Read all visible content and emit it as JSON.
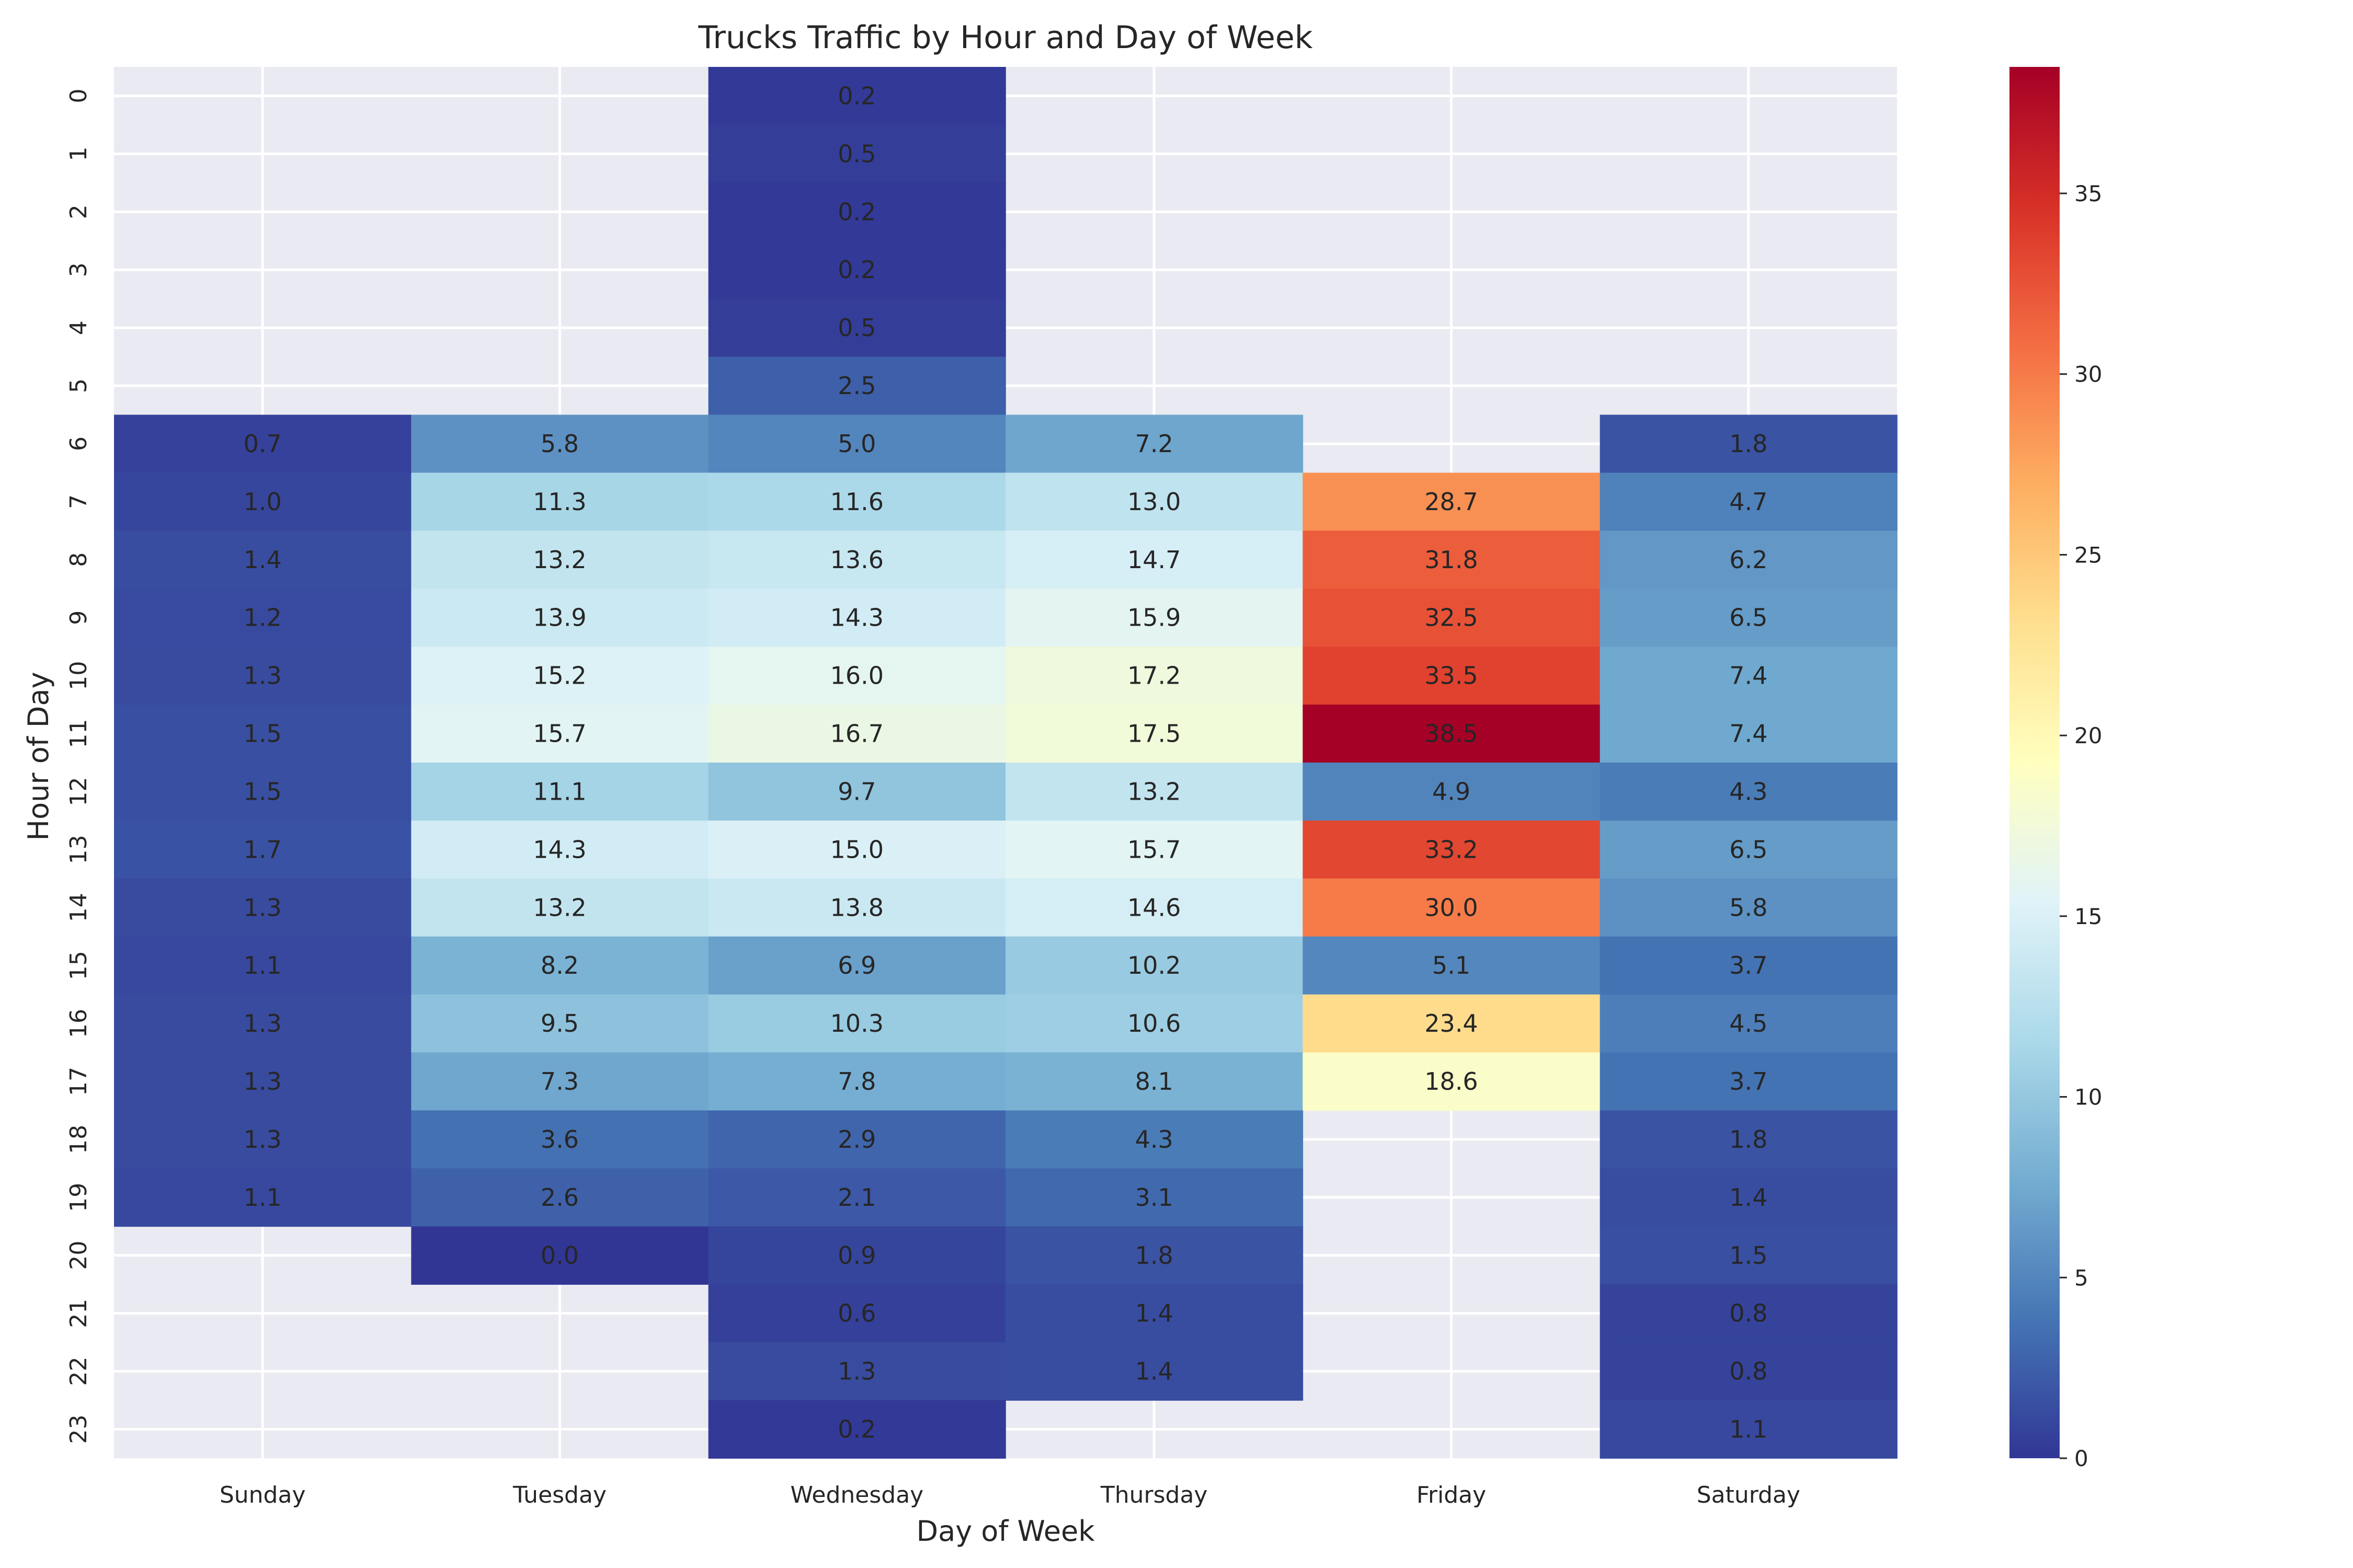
{
  "chart_data": {
    "type": "heatmap",
    "title": "Trucks Traffic by Hour and Day of Week",
    "xlabel": "Day of Week",
    "ylabel": "Hour of Day",
    "x_categories": [
      "Sunday",
      "Tuesday",
      "Wednesday",
      "Thursday",
      "Friday",
      "Saturday"
    ],
    "y_categories": [
      "0",
      "1",
      "2",
      "3",
      "4",
      "5",
      "6",
      "7",
      "8",
      "9",
      "10",
      "11",
      "12",
      "13",
      "14",
      "15",
      "16",
      "17",
      "18",
      "19",
      "20",
      "21",
      "22",
      "23"
    ],
    "values": [
      [
        null,
        null,
        0.2,
        null,
        null,
        null
      ],
      [
        null,
        null,
        0.5,
        null,
        null,
        null
      ],
      [
        null,
        null,
        0.2,
        null,
        null,
        null
      ],
      [
        null,
        null,
        0.2,
        null,
        null,
        null
      ],
      [
        null,
        null,
        0.5,
        null,
        null,
        null
      ],
      [
        null,
        null,
        2.5,
        null,
        null,
        null
      ],
      [
        0.7,
        5.8,
        5.0,
        7.2,
        null,
        1.8
      ],
      [
        1.0,
        11.3,
        11.6,
        13.0,
        28.7,
        4.7
      ],
      [
        1.4,
        13.2,
        13.6,
        14.7,
        31.8,
        6.2
      ],
      [
        1.2,
        13.9,
        14.3,
        15.9,
        32.5,
        6.5
      ],
      [
        1.3,
        15.2,
        16.0,
        17.2,
        33.5,
        7.4
      ],
      [
        1.5,
        15.7,
        16.7,
        17.5,
        38.5,
        7.4
      ],
      [
        1.5,
        11.1,
        9.7,
        13.2,
        4.9,
        4.3
      ],
      [
        1.7,
        14.3,
        15.0,
        15.7,
        33.2,
        6.5
      ],
      [
        1.3,
        13.2,
        13.8,
        14.6,
        30.0,
        5.8
      ],
      [
        1.1,
        8.2,
        6.9,
        10.2,
        5.1,
        3.7
      ],
      [
        1.3,
        9.5,
        10.3,
        10.6,
        23.4,
        4.5
      ],
      [
        1.3,
        7.3,
        7.8,
        8.1,
        18.6,
        3.7
      ],
      [
        1.3,
        3.6,
        2.9,
        4.3,
        null,
        1.8
      ],
      [
        1.1,
        2.6,
        2.1,
        3.1,
        null,
        1.4
      ],
      [
        null,
        0.0,
        0.9,
        1.8,
        null,
        1.5
      ],
      [
        null,
        null,
        0.6,
        1.4,
        null,
        0.8
      ],
      [
        null,
        null,
        1.3,
        1.4,
        null,
        0.8
      ],
      [
        null,
        null,
        0.2,
        null,
        null,
        1.1
      ]
    ],
    "value_format": "0.0",
    "colormap": "RdYlBu_r",
    "colorbar": {
      "min": 0,
      "max": 38.5,
      "ticks": [
        0,
        5,
        10,
        15,
        20,
        25,
        30,
        35
      ]
    },
    "grid": true,
    "colors": {
      "background": "#eaeaf2",
      "grid": "#ffffff",
      "text": "#262626"
    }
  }
}
